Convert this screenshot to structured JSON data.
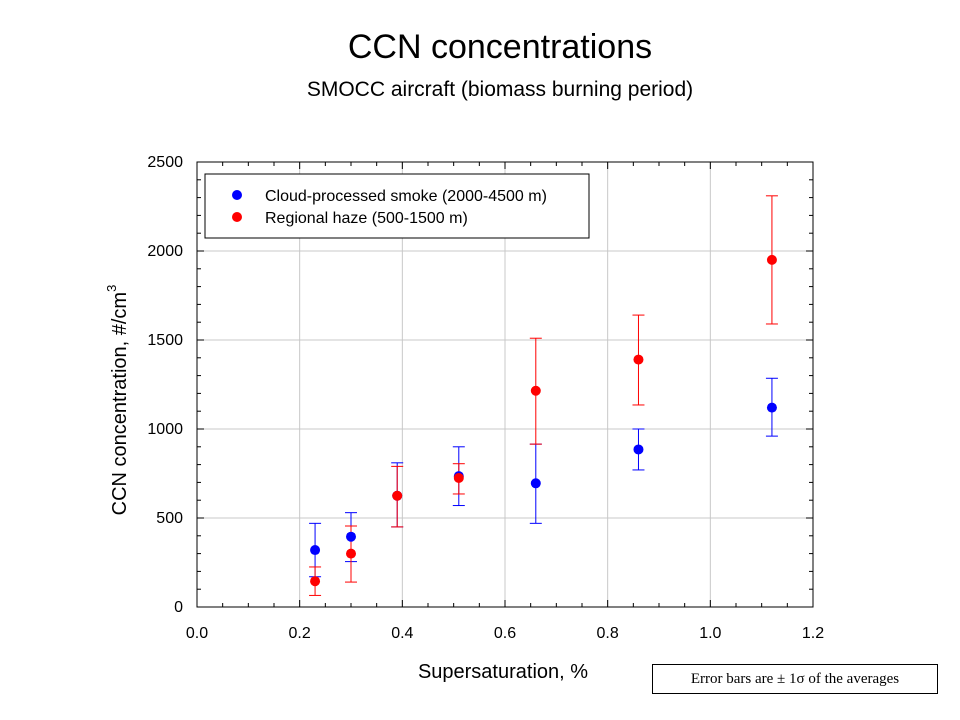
{
  "chart_data": {
    "type": "scatter",
    "title": "CCN concentrations",
    "subtitle": "SMOCC aircraft (biomass burning period)",
    "xlabel": "Supersaturation,  %",
    "ylabel": "CCN concentration,  #/cm",
    "ylabel_sup": "3",
    "xlim": [
      0.0,
      1.2
    ],
    "ylim": [
      0,
      2500
    ],
    "xticks": [
      "0.0",
      "0.2",
      "0.4",
      "0.6",
      "0.8",
      "1.0",
      "1.2"
    ],
    "yticks": [
      "0",
      "500",
      "1000",
      "1500",
      "2000",
      "2500"
    ],
    "grid": true,
    "legend_position": "top-left",
    "series": [
      {
        "name": "Cloud-processed smoke  (2000-4500 m)",
        "color": "#0000ff",
        "x": [
          0.23,
          0.3,
          0.39,
          0.51,
          0.66,
          0.86,
          1.12
        ],
        "y": [
          320,
          395,
          625,
          735,
          695,
          885,
          1120
        ],
        "err_low": [
          170,
          255,
          450,
          570,
          470,
          770,
          960
        ],
        "err_high": [
          470,
          530,
          810,
          900,
          915,
          1000,
          1285
        ]
      },
      {
        "name": "Regional haze (500-1500 m)",
        "color": "#ff0000",
        "x": [
          0.23,
          0.3,
          0.39,
          0.51,
          0.66,
          0.86,
          1.12
        ],
        "y": [
          145,
          300,
          625,
          725,
          1215,
          1390,
          1950
        ],
        "err_low": [
          65,
          140,
          450,
          635,
          915,
          1135,
          1590
        ],
        "err_high": [
          225,
          455,
          790,
          805,
          1510,
          1640,
          2310
        ]
      }
    ]
  },
  "note": "Error bars are ± 1σ of the averages"
}
